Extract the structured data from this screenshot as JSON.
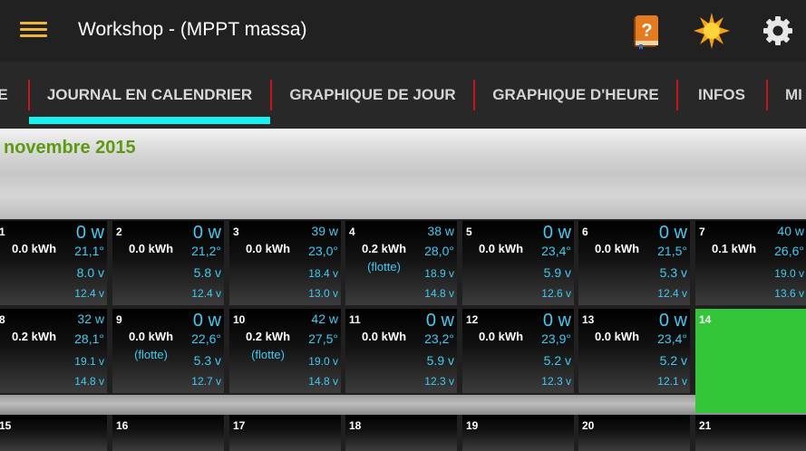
{
  "app": {
    "title": "Workshop - (MPPT massa)",
    "accent_color": "#f2b23e",
    "icons": [
      "menu-icon",
      "help-book-icon",
      "sun-icon",
      "gear-icon"
    ]
  },
  "tabs": [
    {
      "label": "E",
      "active": false
    },
    {
      "label": "JOURNAL EN CALENDRIER",
      "active": true
    },
    {
      "label": "GRAPHIQUE DE JOUR",
      "active": false
    },
    {
      "label": "GRAPHIQUE D'HEURE",
      "active": false
    },
    {
      "label": "INFOS",
      "active": false
    },
    {
      "label": "MI",
      "active": false
    }
  ],
  "tab_indicator_color": "#18f2f2",
  "month": "novembre 2015",
  "days": [
    {
      "day": "1",
      "kwh": "0.0 kWh",
      "state": "",
      "power": "0 w",
      "temp": "21,1°",
      "pv": "8.0 v",
      "bat": "12.4 v"
    },
    {
      "day": "2",
      "kwh": "0.0 kWh",
      "state": "",
      "power": "0 w",
      "temp": "21,2°",
      "pv": "5.8 v",
      "bat": "12.4 v"
    },
    {
      "day": "3",
      "kwh": "0.0 kWh",
      "state": "",
      "power": "39 w",
      "temp": "23,0°",
      "pv": "18.4 v",
      "bat": "13.0 v"
    },
    {
      "day": "4",
      "kwh": "0.2 kWh",
      "state": "(flotte)",
      "power": "38 w",
      "temp": "28,0°",
      "pv": "18.9 v",
      "bat": "14.8 v"
    },
    {
      "day": "5",
      "kwh": "0.0 kWh",
      "state": "",
      "power": "0 w",
      "temp": "23,4°",
      "pv": "5.9 v",
      "bat": "12.6 v"
    },
    {
      "day": "6",
      "kwh": "0.0 kWh",
      "state": "",
      "power": "0 w",
      "temp": "21,5°",
      "pv": "5.3 v",
      "bat": "12.4 v"
    },
    {
      "day": "7",
      "kwh": "0.1 kWh",
      "state": "",
      "power": "40 w",
      "temp": "26,6°",
      "pv": "19.0 v",
      "bat": "13.6 v"
    },
    {
      "day": "8",
      "kwh": "0.2 kWh",
      "state": "",
      "power": "32 w",
      "temp": "28,1°",
      "pv": "19.1 v",
      "bat": "14.8 v"
    },
    {
      "day": "9",
      "kwh": "0.0 kWh",
      "state": "(flotte)",
      "power": "0 w",
      "temp": "22,6°",
      "pv": "5.3 v",
      "bat": "12.7 v"
    },
    {
      "day": "10",
      "kwh": "0.2 kWh",
      "state": "(flotte)",
      "power": "42 w",
      "temp": "27,5°",
      "pv": "19.0 v",
      "bat": "14.8 v"
    },
    {
      "day": "11",
      "kwh": "0.0 kWh",
      "state": "",
      "power": "0 w",
      "temp": "23,2°",
      "pv": "5.9 v",
      "bat": "12.3 v"
    },
    {
      "day": "12",
      "kwh": "0.0 kWh",
      "state": "",
      "power": "0 w",
      "temp": "23,9°",
      "pv": "5.2 v",
      "bat": "12.3 v"
    },
    {
      "day": "13",
      "kwh": "0.0 kWh",
      "state": "",
      "power": "0 w",
      "temp": "23,4°",
      "pv": "5.2 v",
      "bat": "12.1 v"
    },
    {
      "day": "14",
      "today": true,
      "today_color": "#33c638"
    },
    {
      "day": "15"
    },
    {
      "day": "16"
    },
    {
      "day": "17"
    },
    {
      "day": "18"
    },
    {
      "day": "19"
    },
    {
      "day": "20"
    },
    {
      "day": "21"
    }
  ]
}
